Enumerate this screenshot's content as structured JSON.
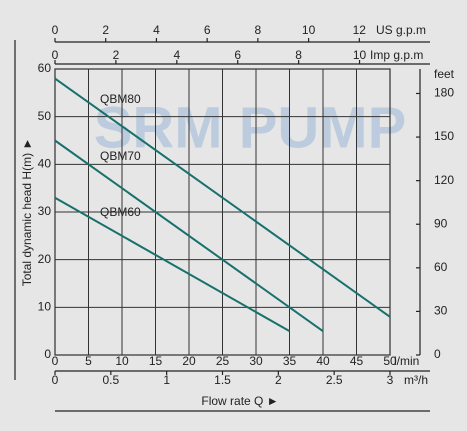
{
  "chart_data": {
    "type": "line",
    "watermark": "SRM PUMP",
    "x_label": "Flow rate Q ►",
    "y_label": "Total dynamic head H(m) ►",
    "x_unit": "l/min",
    "xlim": [
      0,
      50
    ],
    "xticks": [
      0,
      5,
      10,
      15,
      20,
      25,
      30,
      35,
      40,
      45,
      50
    ],
    "ylim": [
      0,
      60
    ],
    "yticks": [
      0,
      10,
      20,
      30,
      40,
      50,
      60
    ],
    "grid": true,
    "x_bottom2": {
      "unit": "m³/h",
      "xlim": [
        0,
        3
      ],
      "xticks": [
        0,
        0.5,
        1,
        1.5,
        2,
        2.5,
        3
      ]
    },
    "x_top": {
      "unit": "US g.p.m",
      "xlim": [
        0,
        13.21
      ],
      "xticks": [
        0,
        2,
        4,
        6,
        8,
        10,
        12
      ]
    },
    "x_top2": {
      "unit": "Imp g.p.m",
      "xlim": [
        0,
        11.0
      ],
      "xticks": [
        0,
        2,
        4,
        6,
        8,
        10
      ]
    },
    "y2_label": "feet",
    "y2lim": [
      0,
      196.85
    ],
    "y2ticks": [
      0,
      30,
      60,
      90,
      120,
      150,
      180
    ],
    "series": [
      {
        "name": "QBM80",
        "color": "#17706c",
        "x": [
          0,
          50
        ],
        "values": [
          58,
          8
        ]
      },
      {
        "name": "QBM70",
        "color": "#17706c",
        "x": [
          0,
          40
        ],
        "values": [
          45,
          5
        ]
      },
      {
        "name": "QBM60",
        "color": "#17706c",
        "x": [
          0,
          35
        ],
        "values": [
          33,
          5
        ]
      }
    ]
  }
}
